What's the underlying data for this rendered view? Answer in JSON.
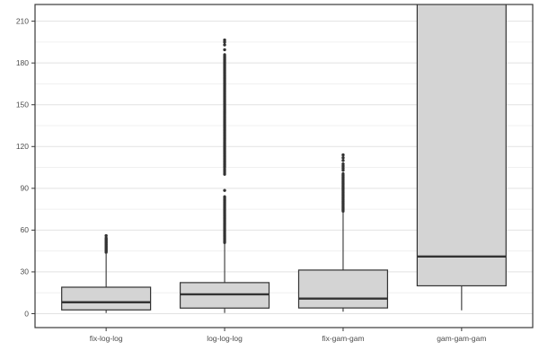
{
  "figure": {
    "kind": "ggplot-boxplot",
    "title": "",
    "xlabel": "",
    "ylabel": ""
  },
  "chart_data": {
    "type": "boxplot",
    "title": "",
    "xlabel": "",
    "ylabel": "",
    "categories": [
      "fix-log-log",
      "log-log-log",
      "fix-gam-gam",
      "gam-gam-gam"
    ],
    "ylim": [
      -10,
      222
    ],
    "yticks": [
      0,
      30,
      60,
      90,
      120,
      150,
      180,
      210
    ],
    "yminor": [
      15,
      45,
      75,
      105,
      135,
      165,
      195
    ],
    "grid": true,
    "legend": false,
    "boxes": [
      {
        "category": "fix-log-log",
        "q1": 2.7,
        "median": 8.2,
        "q3": 19,
        "whisker_low": 0.5,
        "whisker_high": 43,
        "outlier_clusters": [
          {
            "min": 44,
            "max": 54.5,
            "count": 26
          }
        ],
        "outlier_points": [
          56
        ],
        "clipped_top": false
      },
      {
        "category": "log-log-log",
        "q1": 4,
        "median": 13.9,
        "q3": 22.3,
        "whisker_low": 0.5,
        "whisker_high": 50,
        "outlier_clusters": [
          {
            "min": 51,
            "max": 84,
            "count": 70
          },
          {
            "min": 100,
            "max": 104,
            "count": 6
          },
          {
            "min": 105,
            "max": 186,
            "count": 170
          }
        ],
        "outlier_points": [
          88.5,
          189.5,
          193,
          195,
          196.5
        ],
        "clipped_top": false
      },
      {
        "category": "fix-gam-gam",
        "q1": 4.1,
        "median": 10.8,
        "q3": 31.3,
        "whisker_low": 1.4,
        "whisker_high": 72.5,
        "outlier_clusters": [
          {
            "min": 73.5,
            "max": 100.5,
            "count": 60
          }
        ],
        "outlier_points": [
          103,
          104.5,
          106,
          107.5,
          110,
          112,
          114
        ],
        "clipped_top": false
      },
      {
        "category": "gam-gam-gam",
        "q1": 20,
        "median": 41,
        "q3": 232,
        "whisker_low": 2.4,
        "whisker_high": null,
        "outlier_clusters": [],
        "outlier_points": [],
        "clipped_top": true
      }
    ],
    "colors": {
      "background": "#ffffff",
      "box_fill": "#d4d4d4",
      "box_stroke": "#333333",
      "median_stroke": "#333333",
      "whisker_stroke": "#333333",
      "outlier_fill": "#333333",
      "panel_border": "#383838",
      "grid_major": "#e2e2e2",
      "grid_minor": "#f0f0f0",
      "tick_mark": "#383838",
      "tick_text": "#4d4d4d"
    }
  }
}
